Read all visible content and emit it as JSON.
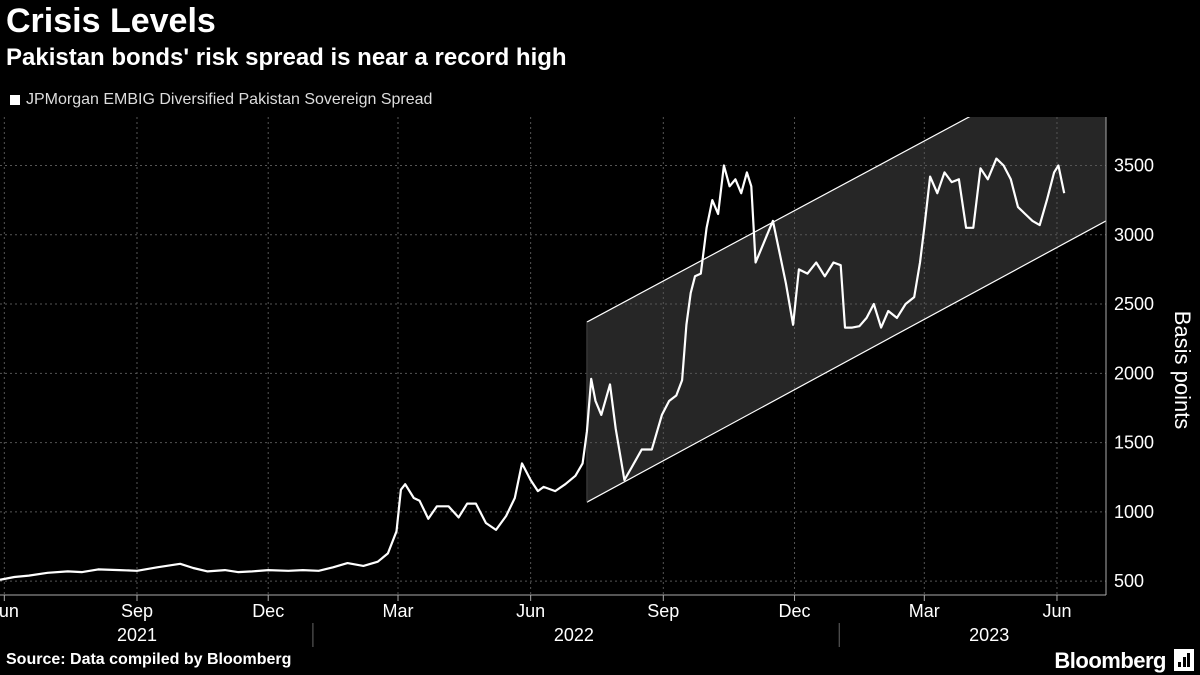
{
  "header": {
    "title": "Crisis Levels",
    "subtitle": "Pakistan bonds' risk spread is near a record high"
  },
  "footer": {
    "source": "Source: Data compiled by Bloomberg",
    "brand": "Bloomberg"
  },
  "chart_data": {
    "type": "line",
    "title": "Crisis Levels",
    "subtitle": "Pakistan bonds' risk spread is near a record high",
    "ylabel": "Basis points",
    "xlabel": "",
    "ylim": [
      400,
      3850
    ],
    "xlim": [
      "2021-05-29",
      "2023-07-05"
    ],
    "yticks": [
      500,
      1000,
      1500,
      2000,
      2500,
      3000,
      3500
    ],
    "ytick_labels": [
      "500",
      "1000",
      "1500",
      "2000",
      "2500",
      "3000",
      "3500"
    ],
    "month_ticks": [
      {
        "date": "2021-06-01",
        "label": "Jun"
      },
      {
        "date": "2021-09-01",
        "label": "Sep"
      },
      {
        "date": "2021-12-01",
        "label": "Dec"
      },
      {
        "date": "2022-03-01",
        "label": "Mar"
      },
      {
        "date": "2022-06-01",
        "label": "Jun"
      },
      {
        "date": "2022-09-01",
        "label": "Sep"
      },
      {
        "date": "2022-12-01",
        "label": "Dec"
      },
      {
        "date": "2023-03-01",
        "label": "Mar"
      },
      {
        "date": "2023-06-01",
        "label": "Jun"
      }
    ],
    "year_labels": [
      {
        "date": "2021-09-01",
        "label": "2021"
      },
      {
        "date": "2022-07-01",
        "label": "2022"
      },
      {
        "date": "2023-04-15",
        "label": "2023"
      }
    ],
    "year_dividers": [
      "2022-01-01",
      "2023-01-01"
    ],
    "grid": true,
    "legend_position": "top-left",
    "colors": {
      "background": "#000000",
      "line": "#ffffff",
      "channel_fill": "#262626",
      "grid": "#555555"
    },
    "series": [
      {
        "name": "JPMorgan EMBIG Diversified Pakistan Sovereign Spread",
        "points": [
          [
            "2021-05-29",
            510
          ],
          [
            "2021-06-08",
            530
          ],
          [
            "2021-06-18",
            540
          ],
          [
            "2021-07-01",
            560
          ],
          [
            "2021-07-15",
            570
          ],
          [
            "2021-07-25",
            565
          ],
          [
            "2021-08-05",
            585
          ],
          [
            "2021-08-20",
            580
          ],
          [
            "2021-09-01",
            575
          ],
          [
            "2021-09-15",
            600
          ],
          [
            "2021-10-01",
            625
          ],
          [
            "2021-10-10",
            595
          ],
          [
            "2021-10-20",
            570
          ],
          [
            "2021-11-01",
            580
          ],
          [
            "2021-11-10",
            565
          ],
          [
            "2021-11-20",
            570
          ],
          [
            "2021-12-01",
            580
          ],
          [
            "2021-12-15",
            575
          ],
          [
            "2021-12-25",
            580
          ],
          [
            "2022-01-05",
            575
          ],
          [
            "2022-01-15",
            600
          ],
          [
            "2022-01-25",
            630
          ],
          [
            "2022-02-05",
            610
          ],
          [
            "2022-02-15",
            640
          ],
          [
            "2022-02-22",
            700
          ],
          [
            "2022-02-28",
            860
          ],
          [
            "2022-03-03",
            1160
          ],
          [
            "2022-03-06",
            1200
          ],
          [
            "2022-03-12",
            1100
          ],
          [
            "2022-03-16",
            1080
          ],
          [
            "2022-03-22",
            950
          ],
          [
            "2022-03-28",
            1040
          ],
          [
            "2022-04-05",
            1040
          ],
          [
            "2022-04-12",
            960
          ],
          [
            "2022-04-18",
            1060
          ],
          [
            "2022-04-24",
            1060
          ],
          [
            "2022-05-01",
            920
          ],
          [
            "2022-05-08",
            870
          ],
          [
            "2022-05-15",
            970
          ],
          [
            "2022-05-21",
            1100
          ],
          [
            "2022-05-26",
            1350
          ],
          [
            "2022-06-01",
            1230
          ],
          [
            "2022-06-06",
            1150
          ],
          [
            "2022-06-10",
            1180
          ],
          [
            "2022-06-18",
            1150
          ],
          [
            "2022-06-25",
            1200
          ],
          [
            "2022-07-02",
            1260
          ],
          [
            "2022-07-07",
            1350
          ],
          [
            "2022-07-10",
            1580
          ],
          [
            "2022-07-13",
            1960
          ],
          [
            "2022-07-16",
            1800
          ],
          [
            "2022-07-20",
            1700
          ],
          [
            "2022-07-26",
            1920
          ],
          [
            "2022-07-30",
            1600
          ],
          [
            "2022-08-05",
            1230
          ],
          [
            "2022-08-10",
            1320
          ],
          [
            "2022-08-17",
            1450
          ],
          [
            "2022-08-24",
            1450
          ],
          [
            "2022-08-31",
            1700
          ],
          [
            "2022-09-05",
            1800
          ],
          [
            "2022-09-10",
            1840
          ],
          [
            "2022-09-14",
            1950
          ],
          [
            "2022-09-17",
            2350
          ],
          [
            "2022-09-20",
            2580
          ],
          [
            "2022-09-23",
            2700
          ],
          [
            "2022-09-27",
            2720
          ],
          [
            "2022-10-01",
            3050
          ],
          [
            "2022-10-05",
            3250
          ],
          [
            "2022-10-09",
            3150
          ],
          [
            "2022-10-13",
            3500
          ],
          [
            "2022-10-17",
            3350
          ],
          [
            "2022-10-21",
            3400
          ],
          [
            "2022-10-25",
            3300
          ],
          [
            "2022-10-29",
            3450
          ],
          [
            "2022-11-01",
            3350
          ],
          [
            "2022-11-04",
            2800
          ],
          [
            "2022-11-08",
            2900
          ],
          [
            "2022-11-12",
            3000
          ],
          [
            "2022-11-16",
            3100
          ],
          [
            "2022-11-20",
            2900
          ],
          [
            "2022-11-25",
            2650
          ],
          [
            "2022-11-30",
            2350
          ],
          [
            "2022-12-04",
            2750
          ],
          [
            "2022-12-10",
            2720
          ],
          [
            "2022-12-16",
            2800
          ],
          [
            "2022-12-22",
            2700
          ],
          [
            "2022-12-28",
            2800
          ],
          [
            "2023-01-02",
            2780
          ],
          [
            "2023-01-05",
            2330
          ],
          [
            "2023-01-10",
            2330
          ],
          [
            "2023-01-15",
            2340
          ],
          [
            "2023-01-20",
            2400
          ],
          [
            "2023-01-25",
            2500
          ],
          [
            "2023-01-30",
            2330
          ],
          [
            "2023-02-04",
            2450
          ],
          [
            "2023-02-10",
            2400
          ],
          [
            "2023-02-16",
            2500
          ],
          [
            "2023-02-22",
            2550
          ],
          [
            "2023-02-26",
            2800
          ],
          [
            "2023-03-01",
            3050
          ],
          [
            "2023-03-05",
            3420
          ],
          [
            "2023-03-10",
            3300
          ],
          [
            "2023-03-15",
            3450
          ],
          [
            "2023-03-20",
            3380
          ],
          [
            "2023-03-25",
            3400
          ],
          [
            "2023-03-30",
            3050
          ],
          [
            "2023-04-04",
            3050
          ],
          [
            "2023-04-09",
            3480
          ],
          [
            "2023-04-14",
            3400
          ],
          [
            "2023-04-20",
            3550
          ],
          [
            "2023-04-25",
            3500
          ],
          [
            "2023-04-30",
            3400
          ],
          [
            "2023-05-05",
            3200
          ],
          [
            "2023-05-10",
            3150
          ],
          [
            "2023-05-15",
            3100
          ],
          [
            "2023-05-20",
            3070
          ],
          [
            "2023-05-25",
            3250
          ],
          [
            "2023-05-30",
            3450
          ],
          [
            "2023-06-02",
            3500
          ],
          [
            "2023-06-06",
            3300
          ]
        ]
      }
    ],
    "annotations": [
      {
        "type": "trend-channel",
        "upper": [
          [
            "2022-07-10",
            2370
          ],
          [
            "2023-04-01",
            3850
          ]
        ],
        "lower": [
          [
            "2022-07-10",
            1070
          ],
          [
            "2023-07-05",
            3100
          ]
        ]
      }
    ]
  }
}
